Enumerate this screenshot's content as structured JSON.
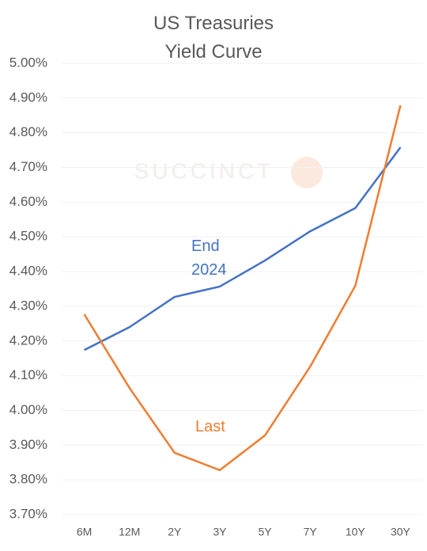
{
  "chart_data": {
    "type": "line",
    "title": "US Treasuries Yield Curve",
    "watermark": "SUCCINCT",
    "categories": [
      "6M",
      "12M",
      "2Y",
      "3Y",
      "5Y",
      "7Y",
      "10Y",
      "30Y"
    ],
    "series": [
      {
        "name": "End 2024",
        "color": "#4472c4",
        "values": [
          4.174,
          4.24,
          4.327,
          4.357,
          4.432,
          4.516,
          4.583,
          4.758
        ]
      },
      {
        "name": "Last",
        "color": "#ed7d31",
        "values": [
          4.277,
          4.065,
          3.878,
          3.828,
          3.928,
          4.126,
          4.359,
          4.879
        ]
      }
    ],
    "ylim": [
      3.7,
      5.0
    ],
    "yticks": [
      {
        "value": 3.7,
        "label": "3.70%"
      },
      {
        "value": 3.8,
        "label": "3.80%"
      },
      {
        "value": 3.9,
        "label": "3.90%"
      },
      {
        "value": 4.0,
        "label": "4.00%"
      },
      {
        "value": 4.1,
        "label": "4.10%"
      },
      {
        "value": 4.2,
        "label": "4.20%"
      },
      {
        "value": 4.3,
        "label": "4.30%"
      },
      {
        "value": 4.4,
        "label": "4.40%"
      },
      {
        "value": 4.5,
        "label": "4.50%"
      },
      {
        "value": 4.6,
        "label": "4.60%"
      },
      {
        "value": 4.7,
        "label": "4.70%"
      },
      {
        "value": 4.8,
        "label": "4.80%"
      },
      {
        "value": 4.9,
        "label": "4.90%"
      },
      {
        "value": 5.0,
        "label": "5.00%"
      }
    ],
    "grid": true
  }
}
